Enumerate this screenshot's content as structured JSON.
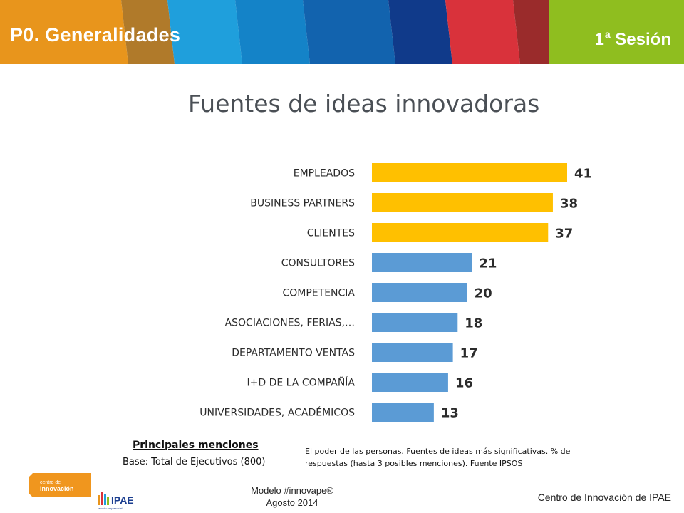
{
  "header": {
    "title": "P0. Generalidades",
    "session_number": "1",
    "session_sup": "a",
    "session_word": "Sesión",
    "stripe_colors": [
      "#e8951c",
      "#b07a2a",
      "#1f9fdc",
      "#1483c8",
      "#1263ae",
      "#103a8a",
      "#d9323b",
      "#9a2b2b",
      "#8fbe1f"
    ]
  },
  "chart_data": {
    "type": "bar",
    "orientation": "horizontal",
    "title": "Fuentes de ideas innovadoras",
    "categories": [
      "EMPLEADOS",
      "BUSINESS PARTNERS",
      "CLIENTES",
      "CONSULTORES",
      "COMPETENCIA",
      "ASOCIACIONES, FERIAS,…",
      "DEPARTAMENTO VENTAS",
      "I+D DE LA COMPAÑÍA",
      "UNIVERSIDADES, ACADÉMICOS"
    ],
    "values": [
      41,
      38,
      37,
      21,
      20,
      18,
      17,
      16,
      13
    ],
    "data_labels": [
      "41",
      "38",
      "37",
      "21",
      "20",
      "18",
      "17",
      "16",
      "13"
    ],
    "colors": [
      "#ffc000",
      "#ffc000",
      "#ffc000",
      "#5b9bd5",
      "#5b9bd5",
      "#5b9bd5",
      "#5b9bd5",
      "#5b9bd5",
      "#5b9bd5"
    ],
    "xlim": [
      0,
      41
    ],
    "grid": false
  },
  "mentions": {
    "title": "Principales menciones",
    "base": "Base: Total de Ejecutivos (800)"
  },
  "note": "El poder de las personas. Fuentes de ideas más significativas. % de respuestas (hasta 3 posibles menciones). Fuente IPSOS",
  "logos": {
    "ci_line1": "centro de",
    "ci_line2": "innovación",
    "ipae_text": "IPAE",
    "ipae_sub": "acción empresarial"
  },
  "footer": {
    "model": "Modelo #innovape®",
    "date": "Agosto 2014",
    "org": "Centro de Innovación de IPAE"
  }
}
